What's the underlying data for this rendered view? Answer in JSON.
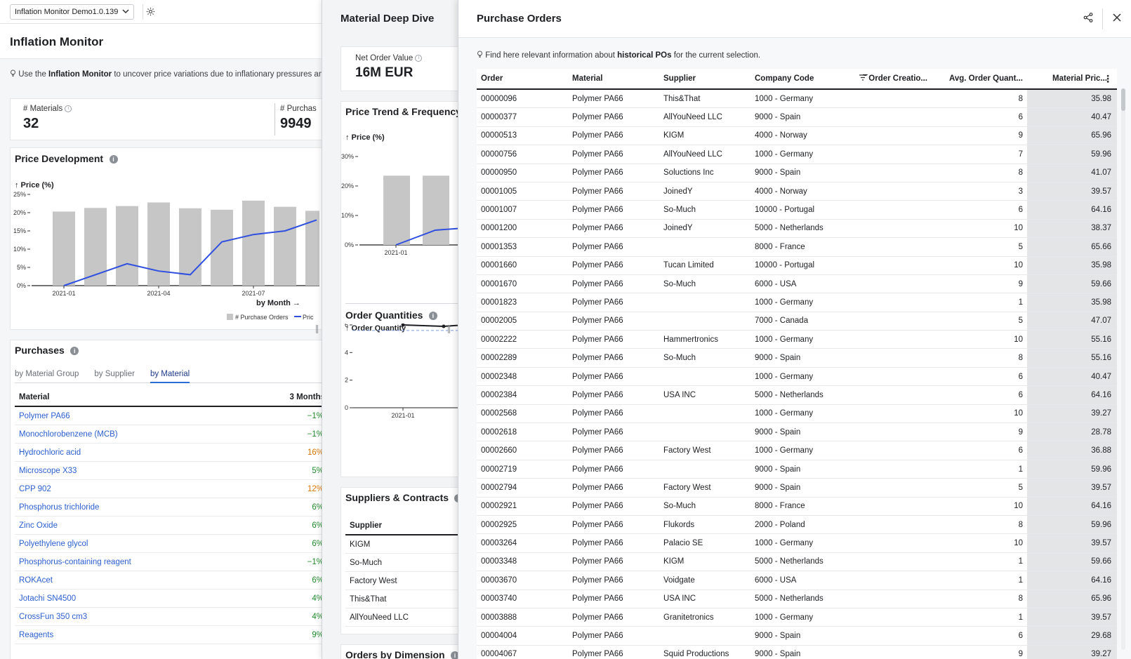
{
  "topbar": {
    "app_select": "Inflation Monitor Demo1.0.139"
  },
  "left": {
    "title": "Inflation Monitor",
    "intro_prefix": "Use the",
    "intro_strong": "Inflation Monitor",
    "intro_suffix": "to uncover price variations due to inflationary pressures and c",
    "kpis": [
      {
        "label": "# Materials",
        "value": "32"
      },
      {
        "label": "# Purchas",
        "value": "9949"
      }
    ],
    "price_dev": {
      "title": "Price Development",
      "chart_data": {
        "type": "bar",
        "title": "",
        "ylabel": "Price (%)",
        "xlabel": "by Month →",
        "ylim": [
          0,
          25
        ],
        "yticks": [
          "0%",
          "5%",
          "10%",
          "15%",
          "20%",
          "25%"
        ],
        "x_tick_labels": [
          "2021-01",
          "2021-04",
          "2021-07"
        ],
        "categories": [
          "2021-01",
          "2021-02",
          "2021-03",
          "2021-04",
          "2021-05",
          "2021-06",
          "2021-07",
          "2021-08",
          "2021-09"
        ],
        "series": [
          {
            "name": "# Purchase Orders",
            "kind": "bar",
            "values": [
              20.3,
              21.3,
              21.8,
              22.8,
              21.2,
              20.8,
              23.3,
              21.6,
              20.5
            ]
          },
          {
            "name": "Pric",
            "kind": "line",
            "values": [
              0,
              3,
              6,
              4,
              3,
              12,
              14,
              15,
              18
            ]
          }
        ],
        "legend_position": "bottom-right"
      }
    },
    "purchases": {
      "title": "Purchases",
      "tabs": [
        "by Material Group",
        "by Supplier",
        "by Material"
      ],
      "col_material": "Material",
      "col_3months": "3 Months",
      "rows": [
        {
          "name": "Polymer PA66",
          "value": "−1%",
          "color": "#1f8a2b"
        },
        {
          "name": "Monochlorobenzene (MCB)",
          "value": "−1%",
          "color": "#1f8a2b"
        },
        {
          "name": "Hydrochloric acid",
          "value": "16%",
          "color": "#d97706"
        },
        {
          "name": "Microscope X33",
          "value": "5%",
          "color": "#1f8a2b"
        },
        {
          "name": "CPP 902",
          "value": "12%",
          "color": "#d97706"
        },
        {
          "name": "Phosphorus trichloride",
          "value": "6%",
          "color": "#1f8a2b"
        },
        {
          "name": "Zinc Oxide",
          "value": "6%",
          "color": "#1f8a2b"
        },
        {
          "name": "Polyethylene glycol",
          "value": "6%",
          "color": "#1f8a2b"
        },
        {
          "name": "Phosphorus-containing reagent",
          "value": "−1%",
          "color": "#1f8a2b"
        },
        {
          "name": "ROKAcet",
          "value": "6%",
          "color": "#1f8a2b"
        },
        {
          "name": "Jotachi SN4500",
          "value": "4%",
          "color": "#1f8a2b"
        },
        {
          "name": "CrossFun 350 cm3",
          "value": "4%",
          "color": "#1f8a2b"
        },
        {
          "name": "Reagents",
          "value": "9%",
          "color": "#1f8a2b"
        }
      ]
    }
  },
  "mid": {
    "title": "Material Deep Dive",
    "nov_label": "Net Order Value",
    "nov_value": "16M EUR",
    "price_trend": {
      "title": "Price Trend & Frequency",
      "chart_data": {
        "type": "bar",
        "ylabel": "Price (%)",
        "yticks": [
          "0%",
          "10%",
          "20%",
          "30%"
        ],
        "ylim": [
          0,
          30
        ],
        "x_tick_labels": [
          "2021-01"
        ],
        "series": [
          {
            "name": "",
            "kind": "bar",
            "values": [
              23.5,
              23.5
            ]
          },
          {
            "name": "",
            "kind": "line",
            "values": [
              0,
              5,
              6
            ]
          }
        ]
      }
    },
    "order_qty": {
      "title": "Order Quantities",
      "chart_data": {
        "type": "line",
        "ylabel": "Order Quantity",
        "yticks": [
          "0",
          "2",
          "4",
          "6"
        ],
        "ylim": [
          0,
          6
        ],
        "x_tick_labels": [
          "2021-01"
        ],
        "series": [
          {
            "name": "",
            "values": [
              6,
              5.9,
              6.1
            ]
          }
        ],
        "reference_line": 5.6
      }
    },
    "suppliers": {
      "title": "Suppliers & Contracts",
      "col_supplier": "Supplier",
      "rows": [
        "KIGM",
        "So-Much",
        "Factory West",
        "This&That",
        "AllYouNeed LLC"
      ]
    },
    "orders_by_dim_title": "Orders by Dimension"
  },
  "right": {
    "title": "Purchase Orders",
    "info_prefix": "Find here relevant information about",
    "info_strong": "historical POs",
    "info_suffix": "for the current selection.",
    "columns": [
      "Order",
      "Material",
      "Supplier",
      "Company Code",
      "Order Creatio...",
      "Avg. Order Quant...",
      "Material Pric..."
    ],
    "filter_badge": "1",
    "rows": [
      [
        "00000096",
        "Polymer PA66",
        "This&That",
        "1000 - Germany",
        "8",
        "35.98"
      ],
      [
        "00000377",
        "Polymer PA66",
        "AllYouNeed LLC",
        "9000 - Spain",
        "6",
        "40.47"
      ],
      [
        "00000513",
        "Polymer PA66",
        "KIGM",
        "4000 - Norway",
        "9",
        "65.96"
      ],
      [
        "00000756",
        "Polymer PA66",
        "AllYouNeed LLC",
        "1000 - Germany",
        "7",
        "59.96"
      ],
      [
        "00000950",
        "Polymer PA66",
        "Soluctions Inc",
        "9000 - Spain",
        "8",
        "41.07"
      ],
      [
        "00001005",
        "Polymer PA66",
        "JoinedY",
        "4000 - Norway",
        "3",
        "39.57"
      ],
      [
        "00001007",
        "Polymer PA66",
        "So-Much",
        "10000 - Portugal",
        "6",
        "64.16"
      ],
      [
        "00001200",
        "Polymer PA66",
        "JoinedY",
        "5000 - Netherlands",
        "10",
        "38.37"
      ],
      [
        "00001353",
        "Polymer PA66",
        "",
        "8000 - France",
        "5",
        "65.66"
      ],
      [
        "00001660",
        "Polymer PA66",
        "Tucan Limited",
        "10000 - Portugal",
        "10",
        "35.98"
      ],
      [
        "00001670",
        "Polymer PA66",
        "So-Much",
        "6000 - USA",
        "9",
        "59.66"
      ],
      [
        "00001823",
        "Polymer PA66",
        "",
        "1000 - Germany",
        "1",
        "35.98"
      ],
      [
        "00002005",
        "Polymer PA66",
        "",
        "7000 - Canada",
        "5",
        "47.07"
      ],
      [
        "00002222",
        "Polymer PA66",
        "Hammertronics",
        "1000 - Germany",
        "10",
        "55.16"
      ],
      [
        "00002289",
        "Polymer PA66",
        "So-Much",
        "9000 - Spain",
        "8",
        "55.16"
      ],
      [
        "00002348",
        "Polymer PA66",
        "",
        "1000 - Germany",
        "6",
        "40.47"
      ],
      [
        "00002384",
        "Polymer PA66",
        "USA INC",
        "5000 - Netherlands",
        "6",
        "64.16"
      ],
      [
        "00002568",
        "Polymer PA66",
        "",
        "1000 - Germany",
        "10",
        "39.27"
      ],
      [
        "00002618",
        "Polymer PA66",
        "",
        "9000 - Spain",
        "9",
        "28.78"
      ],
      [
        "00002660",
        "Polymer PA66",
        "Factory West",
        "1000 - Germany",
        "6",
        "36.88"
      ],
      [
        "00002719",
        "Polymer PA66",
        "",
        "9000 - Spain",
        "1",
        "59.96"
      ],
      [
        "00002794",
        "Polymer PA66",
        "Factory West",
        "9000 - Spain",
        "5",
        "39.57"
      ],
      [
        "00002921",
        "Polymer PA66",
        "So-Much",
        "8000 - France",
        "10",
        "64.16"
      ],
      [
        "00002925",
        "Polymer PA66",
        "Flukords",
        "2000 - Poland",
        "8",
        "59.96"
      ],
      [
        "00003264",
        "Polymer PA66",
        "Palacio SE",
        "1000 - Germany",
        "10",
        "39.57"
      ],
      [
        "00003348",
        "Polymer PA66",
        "KIGM",
        "5000 - Netherlands",
        "1",
        "59.66"
      ],
      [
        "00003670",
        "Polymer PA66",
        "Voidgate",
        "6000 - USA",
        "1",
        "64.16"
      ],
      [
        "00003740",
        "Polymer PA66",
        "USA INC",
        "5000 - Netherlands",
        "8",
        "65.96"
      ],
      [
        "00003888",
        "Polymer PA66",
        "Granitetronics",
        "1000 - Germany",
        "1",
        "39.57"
      ],
      [
        "00004004",
        "Polymer PA66",
        "",
        "9000 - Spain",
        "6",
        "29.68"
      ],
      [
        "00004067",
        "Polymer PA66",
        "Squid Productions",
        "9000 - Spain",
        "9",
        "39.27"
      ]
    ]
  }
}
